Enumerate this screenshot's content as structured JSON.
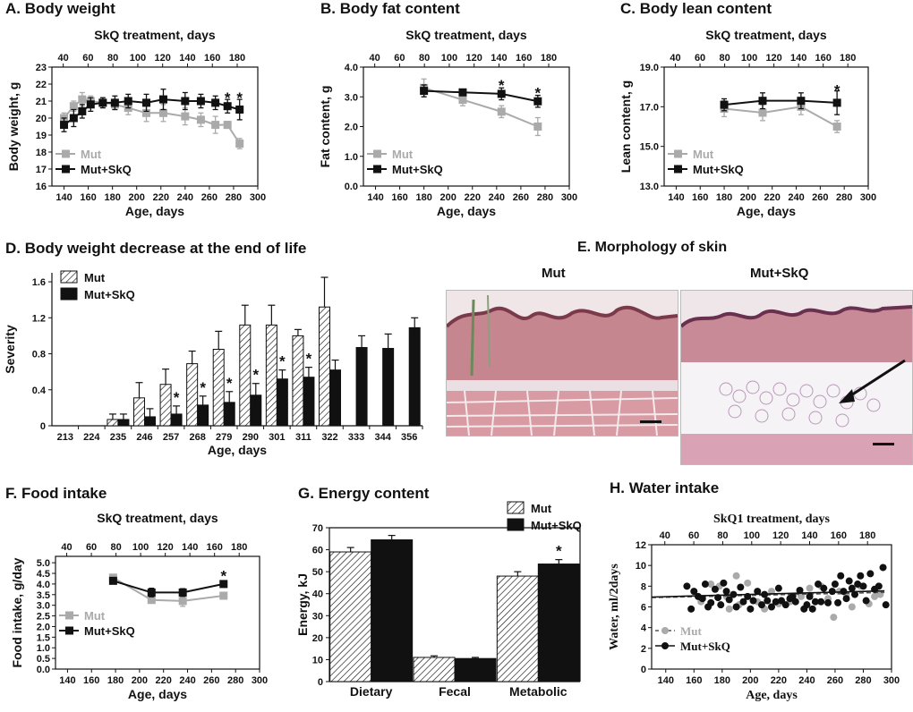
{
  "chart_data": [
    {
      "id": "A",
      "type": "line",
      "title": "A.  Body weight",
      "top_label": "SkQ treatment, days",
      "top_ticks": [
        40,
        60,
        80,
        100,
        120,
        140,
        160,
        180
      ],
      "xlabel": "Age, days",
      "ylabel": "Body weight, g",
      "xlim": [
        130,
        300
      ],
      "ylim": [
        16,
        23
      ],
      "x_ticks": [
        140,
        160,
        180,
        200,
        220,
        240,
        260,
        280,
        300
      ],
      "y_ticks": [
        16,
        17,
        18,
        19,
        20,
        21,
        22,
        23
      ],
      "series": [
        {
          "name": "Mut",
          "color": "#aaaaaa",
          "x": [
            140,
            148,
            155,
            162,
            172,
            182,
            193,
            208,
            222,
            240,
            253,
            265,
            275,
            285
          ],
          "y": [
            20.0,
            20.7,
            21.1,
            21.0,
            20.9,
            20.8,
            20.6,
            20.3,
            20.3,
            20.1,
            19.9,
            19.6,
            19.6,
            18.5
          ],
          "err": [
            0.3,
            0.3,
            0.4,
            0.3,
            0.2,
            0.3,
            0.4,
            0.5,
            0.5,
            0.5,
            0.4,
            0.5,
            0.2,
            0.3
          ]
        },
        {
          "name": "Mut+SkQ",
          "color": "#111111",
          "x": [
            140,
            148,
            155,
            162,
            172,
            182,
            193,
            208,
            222,
            240,
            253,
            265,
            275,
            285
          ],
          "y": [
            19.6,
            20.0,
            20.4,
            20.8,
            20.9,
            20.9,
            21.0,
            20.9,
            21.1,
            21.0,
            21.0,
            20.9,
            20.7,
            20.5
          ],
          "err": [
            0.4,
            0.5,
            0.4,
            0.4,
            0.3,
            0.4,
            0.4,
            0.5,
            0.6,
            0.5,
            0.4,
            0.4,
            0.4,
            0.6
          ]
        }
      ],
      "annotations": [
        {
          "x": 275,
          "y": 21.2,
          "text": "*"
        },
        {
          "x": 285,
          "y": 21.2,
          "text": "*"
        }
      ],
      "legend": [
        "Mut",
        "Mut+SkQ"
      ]
    },
    {
      "id": "B",
      "type": "line",
      "title": "B. Body fat content",
      "top_label": "SkQ treatment, days",
      "top_ticks": [
        40,
        60,
        80,
        100,
        120,
        140,
        160,
        180
      ],
      "xlabel": "Age, days",
      "ylabel": "Fat content, g",
      "xlim": [
        130,
        300
      ],
      "ylim": [
        0,
        4
      ],
      "x_ticks": [
        140,
        160,
        180,
        200,
        220,
        240,
        260,
        280,
        300
      ],
      "y_ticks": [
        "0.0",
        "1.0",
        "2.0",
        "3.0",
        "4.0"
      ],
      "series": [
        {
          "name": "Mut",
          "color": "#aaaaaa",
          "x": [
            180,
            212,
            244,
            274
          ],
          "y": [
            3.3,
            2.9,
            2.5,
            2.0
          ],
          "err": [
            0.3,
            0.2,
            0.2,
            0.3
          ]
        },
        {
          "name": "Mut+SkQ",
          "color": "#111111",
          "x": [
            180,
            212,
            244,
            274
          ],
          "y": [
            3.2,
            3.15,
            3.1,
            2.85
          ],
          "err": [
            0.2,
            0.1,
            0.2,
            0.2
          ]
        }
      ],
      "annotations": [
        {
          "x": 244,
          "y": 3.4,
          "text": "*"
        },
        {
          "x": 274,
          "y": 3.15,
          "text": "*"
        }
      ],
      "legend": [
        "Mut",
        "Mut+SkQ"
      ]
    },
    {
      "id": "C",
      "type": "line",
      "title": "C. Body lean content",
      "top_label": "SkQ treatment, days",
      "top_ticks": [
        40,
        60,
        80,
        100,
        120,
        140,
        160,
        180
      ],
      "xlabel": "Age, days",
      "ylabel": "Lean content, g",
      "xlim": [
        130,
        300
      ],
      "ylim": [
        13,
        19
      ],
      "x_ticks": [
        140,
        160,
        180,
        200,
        220,
        240,
        260,
        280,
        300
      ],
      "y_ticks": [
        "13.0",
        "15.0",
        "17.0",
        "19.0"
      ],
      "series": [
        {
          "name": "Mut",
          "color": "#aaaaaa",
          "x": [
            180,
            212,
            244,
            274
          ],
          "y": [
            16.9,
            16.7,
            17.0,
            16.0
          ],
          "err": [
            0.4,
            0.4,
            0.4,
            0.3
          ]
        },
        {
          "name": "Mut+SkQ",
          "color": "#111111",
          "x": [
            180,
            212,
            244,
            274
          ],
          "y": [
            17.1,
            17.3,
            17.3,
            17.2
          ],
          "err": [
            0.3,
            0.4,
            0.4,
            0.6
          ]
        }
      ],
      "annotations": [
        {
          "x": 274,
          "y": 17.85,
          "text": "*"
        }
      ],
      "legend": [
        "Mut",
        "Mut+SkQ"
      ]
    },
    {
      "id": "D",
      "type": "bar",
      "title": "D. Body weight decrease at the end of life",
      "xlabel": "Age, days",
      "ylabel": "Severity",
      "ylim": [
        0,
        1.7
      ],
      "y_ticks": [
        "0",
        "0.4",
        "0.8",
        "1.2",
        "1.6"
      ],
      "categories": [
        "213",
        "224",
        "235",
        "246",
        "257",
        "268",
        "279",
        "290",
        "301",
        "311",
        "322",
        "333",
        "344",
        "356"
      ],
      "series": [
        {
          "name": "Mut",
          "pattern": "hatched",
          "values": [
            0,
            0,
            0.07,
            0.31,
            0.46,
            0.69,
            0.85,
            1.12,
            1.12,
            1.0,
            1.32,
            null,
            null,
            null
          ],
          "err": [
            0,
            0,
            0.06,
            0.17,
            0.17,
            0.14,
            0.2,
            0.22,
            0.22,
            0.07,
            0.33,
            null,
            null,
            null
          ]
        },
        {
          "name": "Mut+SkQ",
          "pattern": "solid",
          "values": [
            0,
            0,
            0.07,
            0.1,
            0.13,
            0.23,
            0.26,
            0.34,
            0.52,
            0.54,
            0.62,
            0.87,
            0.86,
            1.09
          ],
          "err": [
            0,
            0,
            0.06,
            0.09,
            0.09,
            0.1,
            0.12,
            0.13,
            0.1,
            0.11,
            0.11,
            0.13,
            0.16,
            0.11
          ]
        }
      ],
      "annotations": [
        {
          "category": "257",
          "text": "*"
        },
        {
          "category": "268",
          "text": "*"
        },
        {
          "category": "279",
          "text": "*"
        },
        {
          "category": "290",
          "text": "*"
        },
        {
          "category": "301",
          "text": "*"
        },
        {
          "category": "311",
          "text": "*"
        }
      ],
      "legend": [
        "Mut",
        "Mut+SkQ"
      ]
    },
    {
      "id": "F",
      "type": "line",
      "title": "F. Food intake",
      "top_label": "SkQ treatment, days",
      "top_ticks": [
        40,
        60,
        80,
        100,
        120,
        140,
        160,
        180
      ],
      "xlabel": "Age, days",
      "ylabel": "Food intake, g/day",
      "xlim": [
        130,
        300
      ],
      "ylim": [
        0,
        5.3
      ],
      "x_ticks": [
        140,
        160,
        180,
        200,
        220,
        240,
        260,
        280,
        300
      ],
      "y_ticks": [
        "0.0",
        "0.5",
        "1.0",
        "1.5",
        "2.0",
        "2.5",
        "3.0",
        "3.5",
        "4.0",
        "4.5",
        "5.0"
      ],
      "series": [
        {
          "name": "Mut",
          "color": "#aaaaaa",
          "x": [
            178,
            210,
            236,
            270
          ],
          "y": [
            4.3,
            3.25,
            3.2,
            3.45
          ],
          "err": [
            0.15,
            0.15,
            0.25,
            0.15
          ]
        },
        {
          "name": "Mut+SkQ",
          "color": "#111111",
          "x": [
            178,
            210,
            236,
            270
          ],
          "y": [
            4.15,
            3.6,
            3.6,
            4.0
          ],
          "err": [
            0.12,
            0.2,
            0.18,
            0.12
          ]
        }
      ],
      "annotations": [
        {
          "x": 270,
          "y": 4.4,
          "text": "*"
        }
      ],
      "legend": [
        "Mut",
        "Mut+SkQ"
      ]
    },
    {
      "id": "G",
      "type": "bar",
      "title": "G. Energy content",
      "xlabel": "",
      "ylabel": "Energy, kJ",
      "ylim": [
        0,
        70
      ],
      "y_ticks": [
        0,
        10,
        20,
        30,
        40,
        50,
        60,
        70
      ],
      "categories": [
        "Dietary",
        "Fecal",
        "Metabolic"
      ],
      "series": [
        {
          "name": "Mut",
          "pattern": "hatched",
          "values": [
            59,
            11,
            48
          ],
          "err": [
            2,
            0.7,
            2
          ]
        },
        {
          "name": "Mut+SkQ",
          "pattern": "solid",
          "values": [
            64.5,
            10.5,
            53.5
          ],
          "err": [
            2,
            0.5,
            2
          ]
        }
      ],
      "annotations": [
        {
          "category": "Metabolic",
          "text": "*"
        }
      ],
      "legend": [
        "Mut",
        "Mut+SkQ"
      ]
    },
    {
      "id": "H",
      "type": "scatter",
      "title": "H.  Water intake",
      "top_label": "SkQ1 treatment, days",
      "top_ticks": [
        40,
        60,
        80,
        100,
        120,
        140,
        160,
        180
      ],
      "xlabel": "Age, days",
      "ylabel": "Water, ml/2days",
      "xlim": [
        130,
        300
      ],
      "ylim": [
        0,
        12
      ],
      "x_ticks": [
        140,
        160,
        180,
        200,
        220,
        240,
        260,
        280,
        300
      ],
      "y_ticks": [
        0,
        2,
        4,
        6,
        8,
        10,
        12
      ],
      "series": [
        {
          "name": "Mut",
          "color": "#aaaaaa",
          "points": [
            [
              165,
              6.5
            ],
            [
              172,
              8.2
            ],
            [
              178,
              8.0
            ],
            [
              183,
              7.0
            ],
            [
              190,
              9.0
            ],
            [
              185,
              5.8
            ],
            [
              192,
              6.2
            ],
            [
              198,
              8.3
            ],
            [
              205,
              6.5
            ],
            [
              210,
              5.8
            ],
            [
              215,
              7.5
            ],
            [
              220,
              6.3
            ],
            [
              228,
              6.5
            ],
            [
              236,
              7.0
            ],
            [
              242,
              7.8
            ],
            [
              250,
              8.0
            ],
            [
              255,
              6.8
            ],
            [
              259,
              5.0
            ],
            [
              263,
              7.5
            ],
            [
              268,
              7.2
            ],
            [
              272,
              6.0
            ],
            [
              278,
              8.0
            ],
            [
              284,
              6.3
            ],
            [
              288,
              7.0
            ],
            [
              292,
              7.2
            ]
          ],
          "trend": [
            [
              130,
              6.9
            ],
            [
              295,
              7.4
            ]
          ]
        },
        {
          "name": "Mut+SkQ",
          "color": "#111111",
          "points": [
            [
              155,
              8.0
            ],
            [
              158,
              5.8
            ],
            [
              160,
              7.5
            ],
            [
              163,
              7.0
            ],
            [
              166,
              6.8
            ],
            [
              168,
              8.2
            ],
            [
              170,
              6.0
            ],
            [
              172,
              6.4
            ],
            [
              175,
              7.7
            ],
            [
              177,
              6.9
            ],
            [
              179,
              6.2
            ],
            [
              181,
              8.3
            ],
            [
              183,
              7.5
            ],
            [
              185,
              6.7
            ],
            [
              188,
              7.2
            ],
            [
              190,
              6.0
            ],
            [
              193,
              7.9
            ],
            [
              195,
              6.5
            ],
            [
              198,
              7.0
            ],
            [
              200,
              5.8
            ],
            [
              202,
              6.6
            ],
            [
              205,
              7.5
            ],
            [
              208,
              6.2
            ],
            [
              210,
              7.2
            ],
            [
              212,
              6.6
            ],
            [
              215,
              6.0
            ],
            [
              218,
              6.5
            ],
            [
              220,
              7.8
            ],
            [
              222,
              6.6
            ],
            [
              225,
              6.2
            ],
            [
              228,
              6.8
            ],
            [
              230,
              7.0
            ],
            [
              232,
              6.5
            ],
            [
              235,
              7.6
            ],
            [
              238,
              5.8
            ],
            [
              240,
              6.2
            ],
            [
              242,
              7.0
            ],
            [
              244,
              5.8
            ],
            [
              246,
              6.5
            ],
            [
              248,
              8.2
            ],
            [
              250,
              6.5
            ],
            [
              252,
              7.8
            ],
            [
              255,
              6.4
            ],
            [
              258,
              7.5
            ],
            [
              260,
              8.2
            ],
            [
              262,
              6.4
            ],
            [
              264,
              9.0
            ],
            [
              266,
              7.5
            ],
            [
              268,
              6.8
            ],
            [
              270,
              8.5
            ],
            [
              272,
              7.8
            ],
            [
              274,
              7.2
            ],
            [
              276,
              8.2
            ],
            [
              278,
              9.0
            ],
            [
              280,
              8.0
            ],
            [
              282,
              6.6
            ],
            [
              285,
              9.2
            ],
            [
              288,
              7.7
            ],
            [
              291,
              8.0
            ],
            [
              294,
              9.8
            ],
            [
              296,
              6.2
            ]
          ],
          "trend": [
            [
              130,
              6.95
            ],
            [
              295,
              7.55
            ]
          ]
        }
      ],
      "legend": [
        "Mut",
        "Mut+SkQ"
      ]
    }
  ],
  "panel_e": {
    "title": "E. Morphology of skin",
    "labels": [
      "Mut",
      "Mut+SkQ"
    ]
  },
  "colors": {
    "mut": "#aaaaaa",
    "skq": "#111111"
  }
}
